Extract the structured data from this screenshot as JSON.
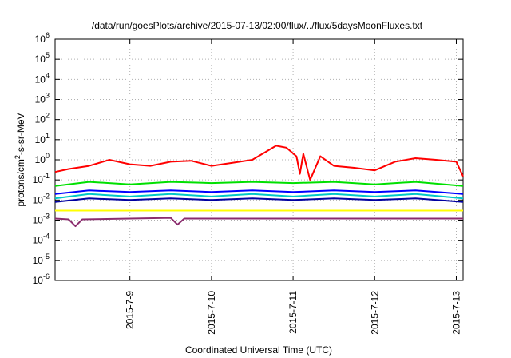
{
  "chart_data": {
    "type": "line",
    "title": "/data/run/goesPlots/archive/2015-07-13/02:00/flux/../flux/5daysMoonFluxes.txt",
    "xlabel": "Coordinated Universal Time (UTC)",
    "ylabel": {
      "main": "protons/cm",
      "sup": "2",
      "rest": "-s-sr-MeV"
    },
    "yscale": "log",
    "ylim": [
      1e-06,
      1000000.0
    ],
    "y_ticks": [
      {
        "exp": "-6",
        "value": 1e-06
      },
      {
        "exp": "-5",
        "value": 1e-05
      },
      {
        "exp": "-4",
        "value": 0.0001
      },
      {
        "exp": "-3",
        "value": 0.001
      },
      {
        "exp": "-2",
        "value": 0.01
      },
      {
        "exp": "-1",
        "value": 0.1
      },
      {
        "exp": "0",
        "value": 1
      },
      {
        "exp": "1",
        "value": 10
      },
      {
        "exp": "2",
        "value": 100
      },
      {
        "exp": "3",
        "value": 1000
      },
      {
        "exp": "4",
        "value": 10000
      },
      {
        "exp": "5",
        "value": 100000
      },
      {
        "exp": "6",
        "value": 1000000
      }
    ],
    "xlim": [
      "2015-07-08T02:00",
      "2015-07-13T02:00"
    ],
    "x_ticks": [
      {
        "label": "2015-7-9",
        "time": "2015-07-09T00:00"
      },
      {
        "label": "2015-7-10",
        "time": "2015-07-10T00:00"
      },
      {
        "label": "2015-7-11",
        "time": "2015-07-11T00:00"
      },
      {
        "label": "2015-7-12",
        "time": "2015-07-12T00:00"
      },
      {
        "label": "2015-7-13",
        "time": "2015-07-13T00:00"
      }
    ],
    "grid": true,
    "series": [
      {
        "color": "#ff0000",
        "points": [
          [
            "2015-07-08T02:00",
            0.25
          ],
          [
            "2015-07-08T06:00",
            0.35
          ],
          [
            "2015-07-08T12:00",
            0.5
          ],
          [
            "2015-07-08T18:00",
            1.0
          ],
          [
            "2015-07-09T00:00",
            0.6
          ],
          [
            "2015-07-09T06:00",
            0.5
          ],
          [
            "2015-07-09T12:00",
            0.8
          ],
          [
            "2015-07-09T18:00",
            0.9
          ],
          [
            "2015-07-10T00:00",
            0.5
          ],
          [
            "2015-07-10T06:00",
            0.7
          ],
          [
            "2015-07-10T12:00",
            1.0
          ],
          [
            "2015-07-10T16:00",
            2.5
          ],
          [
            "2015-07-10T19:00",
            5.0
          ],
          [
            "2015-07-10T22:00",
            4.0
          ],
          [
            "2015-07-11T01:00",
            1.5
          ],
          [
            "2015-07-11T02:00",
            0.2
          ],
          [
            "2015-07-11T03:00",
            2.0
          ],
          [
            "2015-07-11T05:00",
            0.1
          ],
          [
            "2015-07-11T08:00",
            1.5
          ],
          [
            "2015-07-11T12:00",
            0.5
          ],
          [
            "2015-07-11T18:00",
            0.4
          ],
          [
            "2015-07-12T00:00",
            0.3
          ],
          [
            "2015-07-12T06:00",
            0.8
          ],
          [
            "2015-07-12T12:00",
            1.2
          ],
          [
            "2015-07-12T18:00",
            1.0
          ],
          [
            "2015-07-13T00:00",
            0.8
          ],
          [
            "2015-07-13T02:00",
            0.15
          ]
        ]
      },
      {
        "color": "#00e000",
        "points": [
          [
            "2015-07-08T02:00",
            0.05
          ],
          [
            "2015-07-08T12:00",
            0.08
          ],
          [
            "2015-07-09T00:00",
            0.06
          ],
          [
            "2015-07-09T12:00",
            0.08
          ],
          [
            "2015-07-10T00:00",
            0.07
          ],
          [
            "2015-07-10T12:00",
            0.08
          ],
          [
            "2015-07-11T00:00",
            0.07
          ],
          [
            "2015-07-11T12:00",
            0.08
          ],
          [
            "2015-07-12T00:00",
            0.06
          ],
          [
            "2015-07-12T12:00",
            0.08
          ],
          [
            "2015-07-13T02:00",
            0.05
          ]
        ]
      },
      {
        "color": "#00c8c8",
        "points": [
          [
            "2015-07-08T02:00",
            0.012
          ],
          [
            "2015-07-08T12:00",
            0.02
          ],
          [
            "2015-07-09T00:00",
            0.015
          ],
          [
            "2015-07-09T12:00",
            0.02
          ],
          [
            "2015-07-10T00:00",
            0.015
          ],
          [
            "2015-07-10T12:00",
            0.02
          ],
          [
            "2015-07-11T00:00",
            0.015
          ],
          [
            "2015-07-11T12:00",
            0.02
          ],
          [
            "2015-07-12T00:00",
            0.015
          ],
          [
            "2015-07-12T12:00",
            0.02
          ],
          [
            "2015-07-13T02:00",
            0.012
          ]
        ]
      },
      {
        "color": "#0000ff",
        "points": [
          [
            "2015-07-08T02:00",
            0.02
          ],
          [
            "2015-07-08T12:00",
            0.03
          ],
          [
            "2015-07-09T00:00",
            0.025
          ],
          [
            "2015-07-09T12:00",
            0.03
          ],
          [
            "2015-07-10T00:00",
            0.025
          ],
          [
            "2015-07-10T12:00",
            0.03
          ],
          [
            "2015-07-11T00:00",
            0.025
          ],
          [
            "2015-07-11T12:00",
            0.03
          ],
          [
            "2015-07-12T00:00",
            0.025
          ],
          [
            "2015-07-12T12:00",
            0.03
          ],
          [
            "2015-07-13T02:00",
            0.02
          ]
        ]
      },
      {
        "color": "#0000a0",
        "points": [
          [
            "2015-07-08T02:00",
            0.008
          ],
          [
            "2015-07-08T12:00",
            0.012
          ],
          [
            "2015-07-09T00:00",
            0.01
          ],
          [
            "2015-07-09T12:00",
            0.012
          ],
          [
            "2015-07-10T00:00",
            0.01
          ],
          [
            "2015-07-10T12:00",
            0.012
          ],
          [
            "2015-07-11T00:00",
            0.01
          ],
          [
            "2015-07-11T12:00",
            0.012
          ],
          [
            "2015-07-12T00:00",
            0.01
          ],
          [
            "2015-07-12T12:00",
            0.012
          ],
          [
            "2015-07-13T02:00",
            0.008
          ]
        ]
      },
      {
        "color": "#ffff00",
        "points": [
          [
            "2015-07-08T02:00",
            0.003
          ],
          [
            "2015-07-09T00:00",
            0.003
          ],
          [
            "2015-07-10T00:00",
            0.003
          ],
          [
            "2015-07-11T00:00",
            0.003
          ],
          [
            "2015-07-12T00:00",
            0.003
          ],
          [
            "2015-07-13T02:00",
            0.003
          ]
        ]
      },
      {
        "color": "#8b2d6e",
        "points": [
          [
            "2015-07-08T02:00",
            0.0012
          ],
          [
            "2015-07-08T06:00",
            0.0011
          ],
          [
            "2015-07-08T08:00",
            0.0005
          ],
          [
            "2015-07-08T10:00",
            0.0011
          ],
          [
            "2015-07-09T00:00",
            0.0012
          ],
          [
            "2015-07-09T12:00",
            0.0013
          ],
          [
            "2015-07-09T14:00",
            0.0006
          ],
          [
            "2015-07-09T16:00",
            0.0012
          ],
          [
            "2015-07-10T00:00",
            0.0012
          ],
          [
            "2015-07-11T00:00",
            0.0012
          ],
          [
            "2015-07-12T00:00",
            0.0012
          ],
          [
            "2015-07-13T02:00",
            0.0012
          ]
        ]
      }
    ]
  }
}
